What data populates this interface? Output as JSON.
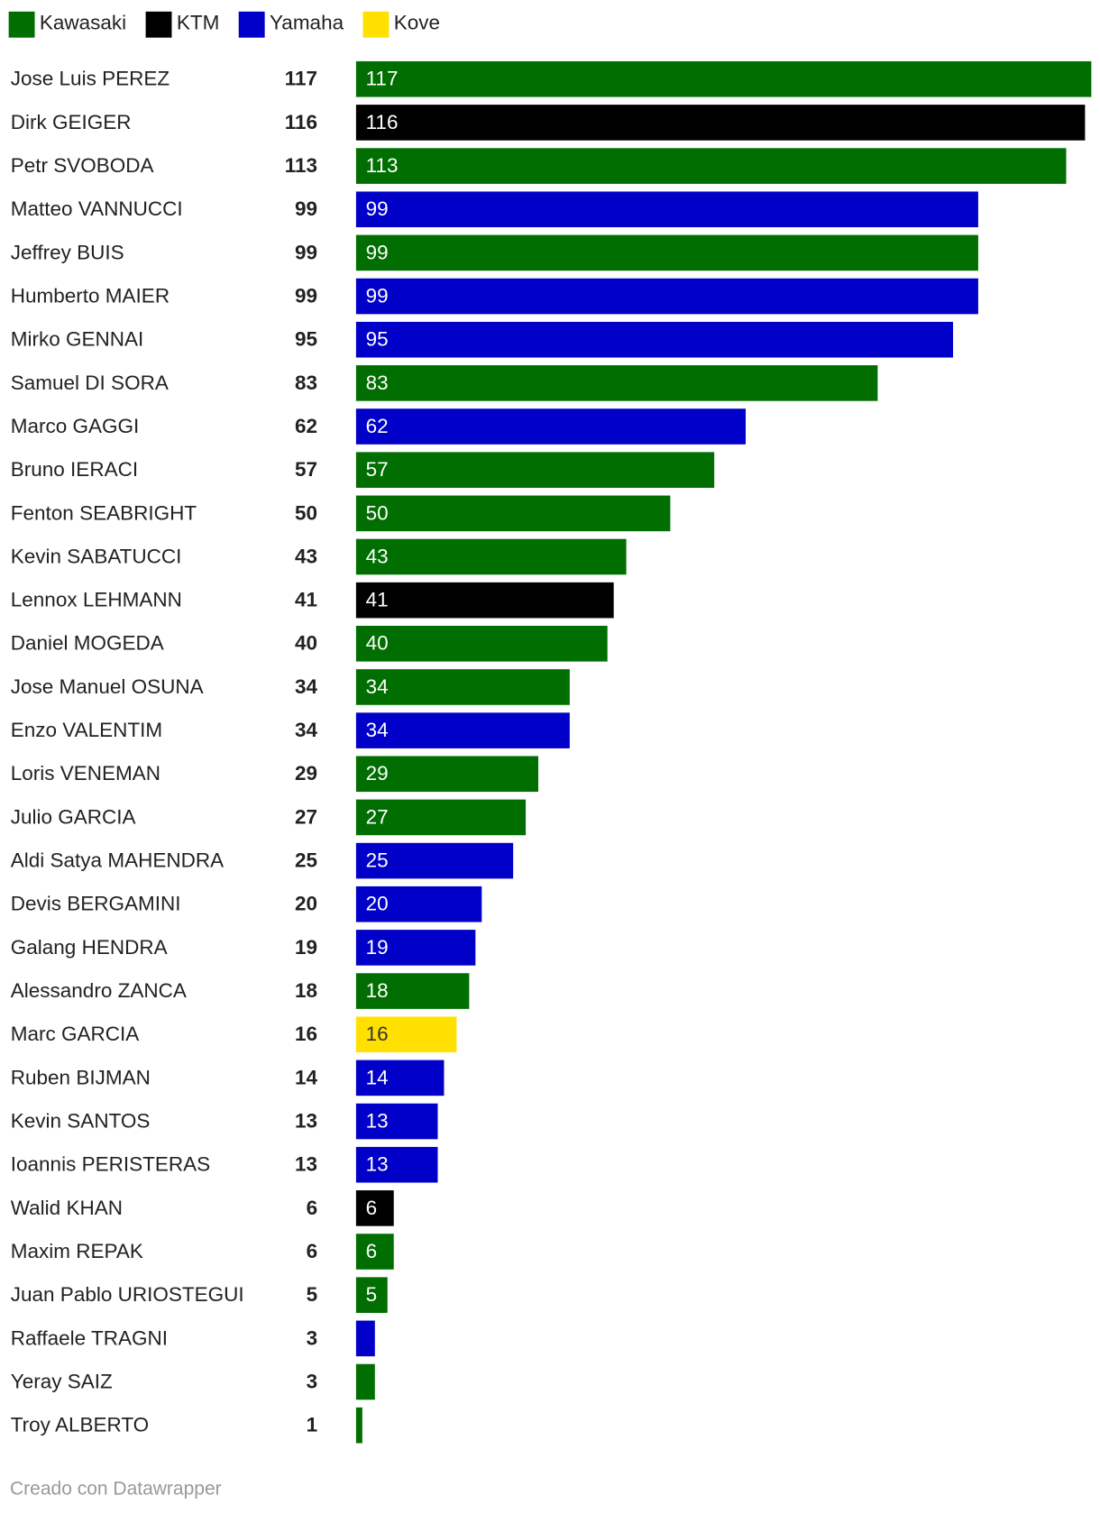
{
  "chart_data": {
    "type": "bar",
    "orientation": "horizontal",
    "legend": [
      {
        "name": "Kawasaki",
        "color": "#006e00"
      },
      {
        "name": "KTM",
        "color": "#000000"
      },
      {
        "name": "Yamaha",
        "color": "#0000c8"
      },
      {
        "name": "Kove",
        "color": "#ffe000"
      }
    ],
    "categories": [
      "Jose Luis PEREZ",
      "Dirk GEIGER",
      "Petr SVOBODA",
      "Matteo VANNUCCI",
      "Jeffrey BUIS",
      "Humberto MAIER",
      "Mirko GENNAI",
      "Samuel DI SORA",
      "Marco GAGGI",
      "Bruno IERACI",
      "Fenton SEABRIGHT",
      "Kevin SABATUCCI",
      "Lennox LEHMANN",
      "Daniel MOGEDA",
      "Jose Manuel OSUNA",
      "Enzo VALENTIM",
      "Loris VENEMAN",
      "Julio GARCIA",
      "Aldi Satya MAHENDRA",
      "Devis BERGAMINI",
      "Galang HENDRA",
      "Alessandro ZANCA",
      "Marc GARCIA",
      "Ruben BIJMAN",
      "Kevin SANTOS",
      "Ioannis PERISTERAS",
      "Walid KHAN",
      "Maxim REPAK",
      "Juan Pablo URIOSTEGUI",
      "Raffaele TRAGNI",
      "Yeray SAIZ",
      "Troy ALBERTO"
    ],
    "values": [
      117,
      116,
      113,
      99,
      99,
      99,
      95,
      83,
      62,
      57,
      50,
      43,
      41,
      40,
      34,
      34,
      29,
      27,
      25,
      20,
      19,
      18,
      16,
      14,
      13,
      13,
      6,
      6,
      5,
      3,
      3,
      1
    ],
    "bar_makes": [
      "Kawasaki",
      "KTM",
      "Kawasaki",
      "Yamaha",
      "Kawasaki",
      "Yamaha",
      "Yamaha",
      "Kawasaki",
      "Yamaha",
      "Kawasaki",
      "Kawasaki",
      "Kawasaki",
      "KTM",
      "Kawasaki",
      "Kawasaki",
      "Yamaha",
      "Kawasaki",
      "Kawasaki",
      "Yamaha",
      "Yamaha",
      "Yamaha",
      "Kawasaki",
      "Kove",
      "Yamaha",
      "Yamaha",
      "Yamaha",
      "KTM",
      "Kawasaki",
      "Kawasaki",
      "Yamaha",
      "Kawasaki",
      "Kawasaki"
    ],
    "xlim": [
      0,
      117
    ],
    "footer": "Creado con Datawrapper"
  }
}
